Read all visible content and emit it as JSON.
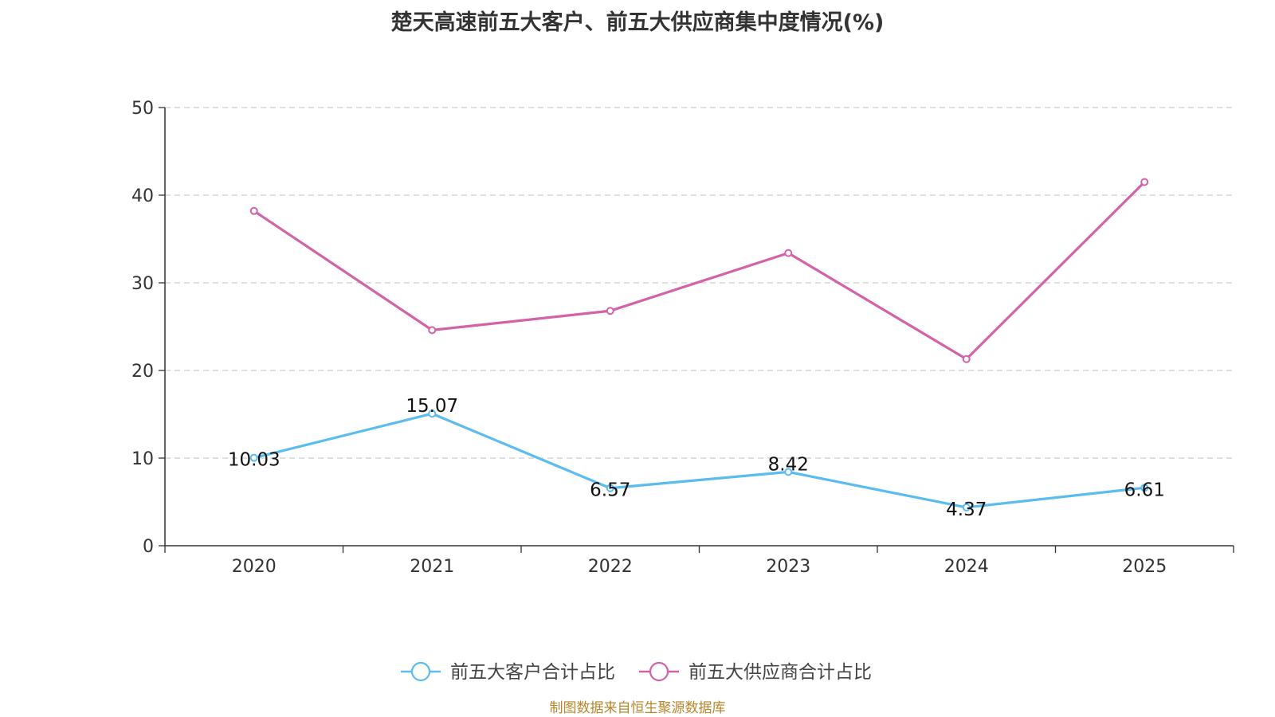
{
  "chart_data": {
    "type": "line",
    "title": "楚天高速前五大客户、前五大供应商集中度情况(%)",
    "categories": [
      "2020",
      "2021",
      "2022",
      "2023",
      "2024",
      "2025"
    ],
    "ylim": [
      0,
      50
    ],
    "yticks": [
      0,
      10,
      20,
      30,
      40,
      50
    ],
    "grid": true,
    "legend_position": "bottom",
    "series": [
      {
        "name": "前五大客户合计占比",
        "color": "#5bbcf0",
        "values": [
          10.03,
          15.07,
          6.57,
          8.42,
          4.37,
          6.61
        ],
        "labels": [
          "10.03",
          "15.07",
          "6.57",
          "8.42",
          "4.37",
          "6.61"
        ],
        "show_labels": true
      },
      {
        "name": "前五大供应商合计占比",
        "color": "#d462a8",
        "values": [
          38.2,
          24.6,
          26.8,
          33.4,
          21.3,
          41.5
        ],
        "show_labels": false
      }
    ],
    "source": "制图数据来自恒生聚源数据库"
  }
}
